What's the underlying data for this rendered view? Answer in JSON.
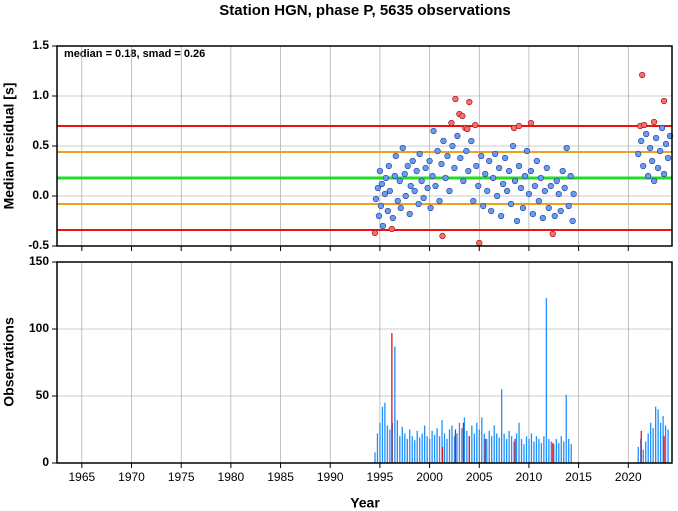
{
  "chart_data": [
    {
      "type": "scatter",
      "title": "Station HGN, phase P, 5635 observations",
      "y_label": "Median residual [s]",
      "annotation": "median = 0.18, smad = 0.26",
      "xlim": [
        1962.5,
        2024.4
      ],
      "xticks": [
        1965,
        1970,
        1975,
        1980,
        1985,
        1990,
        1995,
        2000,
        2005,
        2010,
        2015,
        2020
      ],
      "ylim": [
        -0.5,
        1.5
      ],
      "yticks": [
        -0.5,
        {
          "value": 0,
          "label": "0.0"
        },
        0.5,
        {
          "value": 1,
          "label": "1.0"
        },
        1.5
      ],
      "grid": true,
      "hlines": [
        {
          "value": 0.7,
          "color": "#ee1111"
        },
        {
          "value": 0.44,
          "color": "#f0a020"
        },
        {
          "value": 0.18,
          "color": "#22dd22"
        },
        {
          "value": -0.08,
          "color": "#f0a020"
        },
        {
          "value": -0.34,
          "color": "#ee1111"
        }
      ],
      "series": [
        {
          "color": "#6b9bf0",
          "x": [
            1994.6,
            1994.8,
            1994.9,
            1995.0,
            1995.1,
            1995.2,
            1995.3,
            1995.5,
            1995.6,
            1995.8,
            1995.9,
            1996.0,
            1996.3,
            1996.5,
            1996.6,
            1996.8,
            1997.0,
            1997.1,
            1997.3,
            1997.5,
            1997.6,
            1997.8,
            1998.0,
            1998.1,
            1998.3,
            1998.5,
            1998.7,
            1998.9,
            1999.0,
            1999.2,
            1999.4,
            1999.6,
            1999.8,
            2000.0,
            2000.1,
            2000.3,
            2000.4,
            2000.6,
            2000.8,
            2001.0,
            2001.2,
            2001.4,
            2001.6,
            2001.8,
            2002.0,
            2002.3,
            2002.5,
            2002.8,
            2003.1,
            2003.4,
            2003.7,
            2003.9,
            2004.2,
            2004.4,
            2004.7,
            2004.9,
            2005.2,
            2005.4,
            2005.6,
            2005.8,
            2006.0,
            2006.2,
            2006.4,
            2006.6,
            2006.8,
            2007.0,
            2007.2,
            2007.4,
            2007.6,
            2007.8,
            2008.0,
            2008.2,
            2008.4,
            2008.6,
            2008.8,
            2009.0,
            2009.2,
            2009.4,
            2009.6,
            2009.8,
            2010.0,
            2010.2,
            2010.4,
            2010.6,
            2010.8,
            2011.0,
            2011.2,
            2011.4,
            2011.6,
            2011.8,
            2012.0,
            2012.2,
            2012.6,
            2012.8,
            2013.0,
            2013.2,
            2013.4,
            2013.6,
            2013.8,
            2014.0,
            2014.2,
            2014.4,
            2014.5,
            2021.0,
            2021.3,
            2021.5,
            2021.8,
            2022.0,
            2022.2,
            2022.4,
            2022.6,
            2022.8,
            2023.0,
            2023.2,
            2023.4,
            2023.6,
            2023.8,
            2024.0,
            2024.2
          ],
          "values": [
            -0.03,
            0.08,
            -0.2,
            0.25,
            -0.1,
            0.12,
            -0.3,
            0.02,
            0.18,
            -0.15,
            0.3,
            0.05,
            -0.22,
            0.2,
            0.4,
            -0.05,
            0.15,
            -0.12,
            0.48,
            0.22,
            0.0,
            0.3,
            -0.18,
            0.1,
            0.35,
            0.05,
            0.25,
            -0.08,
            0.42,
            0.15,
            -0.02,
            0.28,
            0.08,
            0.35,
            -0.12,
            0.2,
            0.65,
            0.1,
            0.45,
            -0.05,
            0.32,
            0.55,
            0.18,
            0.4,
            0.05,
            0.5,
            0.28,
            0.6,
            0.38,
            0.15,
            0.45,
            0.25,
            0.55,
            -0.05,
            0.3,
            0.1,
            0.4,
            -0.1,
            0.22,
            0.05,
            0.35,
            -0.15,
            0.18,
            0.42,
            0.0,
            0.28,
            -0.2,
            0.12,
            0.38,
            0.05,
            0.25,
            -0.08,
            0.5,
            0.15,
            -0.25,
            0.3,
            0.08,
            -0.12,
            0.2,
            0.45,
            0.02,
            0.25,
            -0.18,
            0.1,
            0.35,
            -0.05,
            0.18,
            -0.22,
            0.05,
            0.28,
            -0.12,
            0.1,
            -0.2,
            0.15,
            0.02,
            -0.15,
            0.25,
            0.08,
            0.48,
            -0.1,
            0.2,
            -0.25,
            0.02,
            0.42,
            0.55,
            0.3,
            0.62,
            0.2,
            0.48,
            0.35,
            0.15,
            0.58,
            0.28,
            0.45,
            0.68,
            0.22,
            0.52,
            0.38,
            0.6
          ]
        },
        {
          "color": "#ff6a6a",
          "x": [
            1994.5,
            1996.2,
            2001.3,
            2002.2,
            2002.6,
            2003.0,
            2003.3,
            2003.6,
            2003.8,
            2004.0,
            2004.6,
            2005.0,
            2008.5,
            2009.0,
            2010.2,
            2012.4,
            2021.2,
            2021.4,
            2021.6,
            2022.6,
            2023.6
          ],
          "values": [
            -0.37,
            -0.33,
            -0.4,
            0.73,
            0.97,
            0.82,
            0.8,
            0.68,
            0.67,
            0.94,
            0.71,
            -0.47,
            0.68,
            0.7,
            0.73,
            -0.38,
            0.7,
            1.21,
            0.71,
            0.74,
            0.95
          ]
        }
      ]
    },
    {
      "type": "bar",
      "y_label": "Observations",
      "x_label": "Year",
      "xlim": [
        1962.5,
        2024.4
      ],
      "xticks": [
        1965,
        1970,
        1975,
        1980,
        1985,
        1990,
        1995,
        2000,
        2005,
        2010,
        2015,
        2020
      ],
      "ylim": [
        0,
        150
      ],
      "yticks": [
        0,
        50,
        100,
        150
      ],
      "grid": true,
      "series": [
        {
          "color": "#1e90ff",
          "x": [
            1994.5,
            1994.75,
            1995.0,
            1995.25,
            1995.5,
            1995.75,
            1996.0,
            1996.25,
            1996.5,
            1996.75,
            1997.0,
            1997.25,
            1997.5,
            1997.75,
            1998.0,
            1998.25,
            1998.5,
            1998.75,
            1999.0,
            1999.25,
            1999.5,
            1999.75,
            2000.0,
            2000.25,
            2000.5,
            2000.75,
            2001.0,
            2001.25,
            2001.5,
            2001.75,
            2002.0,
            2002.25,
            2002.5,
            2002.75,
            2003.0,
            2003.25,
            2003.5,
            2003.75,
            2004.0,
            2004.25,
            2004.5,
            2004.75,
            2005.0,
            2005.25,
            2005.5,
            2005.75,
            2006.0,
            2006.25,
            2006.5,
            2006.75,
            2007.0,
            2007.25,
            2007.5,
            2007.75,
            2008.0,
            2008.25,
            2008.5,
            2008.75,
            2009.0,
            2009.25,
            2009.5,
            2009.75,
            2010.0,
            2010.25,
            2010.5,
            2010.75,
            2011.0,
            2011.25,
            2011.5,
            2011.75,
            2012.0,
            2012.25,
            2012.5,
            2012.75,
            2013.0,
            2013.25,
            2013.5,
            2013.75,
            2014.0,
            2014.25,
            2021.0,
            2021.25,
            2021.5,
            2021.75,
            2022.0,
            2022.25,
            2022.5,
            2022.75,
            2023.0,
            2023.25,
            2023.5,
            2023.75,
            2024.0
          ],
          "values": [
            8,
            22,
            30,
            42,
            45,
            28,
            25,
            30,
            87,
            32,
            20,
            27,
            22,
            18,
            25,
            20,
            17,
            24,
            19,
            22,
            28,
            20,
            18,
            24,
            21,
            26,
            20,
            32,
            22,
            18,
            25,
            28,
            20,
            22,
            30,
            26,
            34,
            24,
            20,
            28,
            22,
            30,
            25,
            34,
            22,
            18,
            24,
            20,
            28,
            22,
            19,
            55,
            22,
            18,
            24,
            20,
            16,
            22,
            30,
            18,
            14,
            20,
            18,
            22,
            16,
            20,
            18,
            15,
            20,
            123,
            18,
            16,
            14,
            18,
            15,
            20,
            16,
            51,
            18,
            14,
            12,
            18,
            10,
            16,
            22,
            30,
            26,
            42,
            40,
            30,
            35,
            28,
            25
          ]
        },
        {
          "color": "#ee1111",
          "x": [
            1996.2,
            2001.3,
            2002.6,
            2003.4,
            2004.0,
            2005.6,
            2008.6,
            2012.4,
            2021.3,
            2023.6
          ],
          "values": [
            97,
            12,
            25,
            30,
            20,
            18,
            18,
            15,
            24,
            20
          ]
        }
      ]
    }
  ]
}
